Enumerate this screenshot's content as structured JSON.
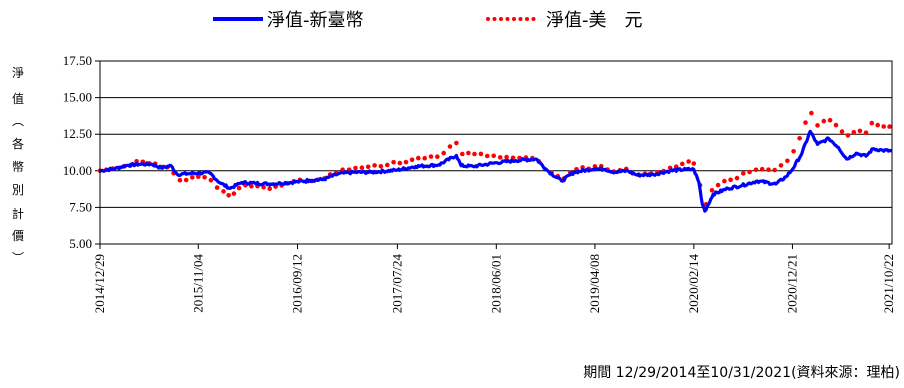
{
  "footnote": "期間 12/29/2014至10/31/2021(資料來源：理柏)",
  "chart_data": {
    "type": "line",
    "ylabel": "淨值（各幣別計價）",
    "ylim": [
      5.0,
      17.5
    ],
    "yticks": [
      "5.00",
      "7.50",
      "10.00",
      "12.50",
      "15.00",
      "17.50"
    ],
    "xlim": [
      "2014-12-29",
      "2021-10-31"
    ],
    "xticks": [
      "2014/12/29",
      "2015/11/04",
      "2016/09/12",
      "2017/07/24",
      "2018/06/01",
      "2019/04/08",
      "2020/02/14",
      "2020/12/21",
      "2021/10/22"
    ],
    "grid": "horizontal",
    "legend_position": "top",
    "series": [
      {
        "name": "淨值-新臺幣",
        "style": "solid",
        "color": "#0000ff",
        "points": [
          [
            "2014-12-29",
            10.0
          ],
          [
            "2015-02-15",
            10.15
          ],
          [
            "2015-03-20",
            10.35
          ],
          [
            "2015-05-01",
            10.45
          ],
          [
            "2015-06-10",
            10.45
          ],
          [
            "2015-07-10",
            10.2
          ],
          [
            "2015-08-10",
            10.35
          ],
          [
            "2015-08-30",
            9.75
          ],
          [
            "2015-10-01",
            9.8
          ],
          [
            "2015-11-04",
            9.85
          ],
          [
            "2015-12-10",
            9.85
          ],
          [
            "2016-01-10",
            9.2
          ],
          [
            "2016-02-12",
            8.8
          ],
          [
            "2016-03-20",
            9.2
          ],
          [
            "2016-05-01",
            9.15
          ],
          [
            "2016-06-20",
            9.1
          ],
          [
            "2016-07-20",
            9.15
          ],
          [
            "2016-09-12",
            9.25
          ],
          [
            "2016-10-20",
            9.35
          ],
          [
            "2016-12-01",
            9.4
          ],
          [
            "2017-01-20",
            9.8
          ],
          [
            "2017-03-10",
            9.9
          ],
          [
            "2017-05-01",
            9.9
          ],
          [
            "2017-07-24",
            10.05
          ],
          [
            "2017-09-20",
            10.3
          ],
          [
            "2017-12-01",
            10.4
          ],
          [
            "2018-01-26",
            11.05
          ],
          [
            "2018-02-10",
            10.35
          ],
          [
            "2018-03-20",
            10.3
          ],
          [
            "2018-06-01",
            10.55
          ],
          [
            "2018-08-01",
            10.7
          ],
          [
            "2018-10-05",
            10.8
          ],
          [
            "2018-11-10",
            10.0
          ],
          [
            "2018-12-24",
            9.3
          ],
          [
            "2019-02-01",
            9.9
          ],
          [
            "2019-04-08",
            10.15
          ],
          [
            "2019-05-10",
            10.1
          ],
          [
            "2019-06-10",
            9.9
          ],
          [
            "2019-07-20",
            10.0
          ],
          [
            "2019-08-20",
            9.7
          ],
          [
            "2019-10-10",
            9.75
          ],
          [
            "2019-12-01",
            10.0
          ],
          [
            "2020-01-20",
            10.1
          ],
          [
            "2020-02-14",
            10.1
          ],
          [
            "2020-03-01",
            9.2
          ],
          [
            "2020-03-12",
            7.7
          ],
          [
            "2020-03-20",
            7.25
          ],
          [
            "2020-04-15",
            8.4
          ],
          [
            "2020-06-01",
            8.8
          ],
          [
            "2020-07-15",
            9.0
          ],
          [
            "2020-09-01",
            9.3
          ],
          [
            "2020-10-30",
            9.1
          ],
          [
            "2020-12-01",
            9.6
          ],
          [
            "2020-12-21",
            10.1
          ],
          [
            "2021-01-20",
            11.2
          ],
          [
            "2021-02-15",
            12.7
          ],
          [
            "2021-03-10",
            11.8
          ],
          [
            "2021-04-15",
            12.2
          ],
          [
            "2021-05-15",
            11.6
          ],
          [
            "2021-06-10",
            10.8
          ],
          [
            "2021-07-10",
            11.2
          ],
          [
            "2021-08-10",
            11.0
          ],
          [
            "2021-09-01",
            11.5
          ],
          [
            "2021-10-01",
            11.4
          ],
          [
            "2021-10-31",
            11.35
          ]
        ]
      },
      {
        "name": "淨值-美　元",
        "style": "dotted",
        "color": "#ff0000",
        "points": [
          [
            "2014-12-29",
            10.0
          ],
          [
            "2015-02-15",
            10.2
          ],
          [
            "2015-03-20",
            10.4
          ],
          [
            "2015-05-01",
            10.6
          ],
          [
            "2015-06-10",
            10.55
          ],
          [
            "2015-07-10",
            10.25
          ],
          [
            "2015-08-10",
            10.2
          ],
          [
            "2015-08-30",
            9.45
          ],
          [
            "2015-10-01",
            9.4
          ],
          [
            "2015-11-04",
            9.6
          ],
          [
            "2015-12-10",
            9.4
          ],
          [
            "2016-01-10",
            8.7
          ],
          [
            "2016-02-12",
            8.3
          ],
          [
            "2016-03-20",
            8.95
          ],
          [
            "2016-05-01",
            8.9
          ],
          [
            "2016-06-20",
            8.85
          ],
          [
            "2016-07-20",
            9.05
          ],
          [
            "2016-09-12",
            9.3
          ],
          [
            "2016-10-20",
            9.35
          ],
          [
            "2016-12-01",
            9.45
          ],
          [
            "2017-01-20",
            9.95
          ],
          [
            "2017-03-10",
            10.15
          ],
          [
            "2017-05-01",
            10.3
          ],
          [
            "2017-07-24",
            10.55
          ],
          [
            "2017-09-20",
            10.8
          ],
          [
            "2017-12-01",
            11.0
          ],
          [
            "2018-01-26",
            11.9
          ],
          [
            "2018-02-10",
            11.05
          ],
          [
            "2018-03-20",
            11.2
          ],
          [
            "2018-06-01",
            11.0
          ],
          [
            "2018-08-01",
            10.9
          ],
          [
            "2018-10-05",
            10.9
          ],
          [
            "2018-11-10",
            10.0
          ],
          [
            "2018-12-24",
            9.45
          ],
          [
            "2019-02-01",
            10.05
          ],
          [
            "2019-04-08",
            10.3
          ],
          [
            "2019-05-10",
            10.2
          ],
          [
            "2019-06-10",
            10.0
          ],
          [
            "2019-07-20",
            10.1
          ],
          [
            "2019-08-20",
            9.65
          ],
          [
            "2019-10-10",
            9.85
          ],
          [
            "2019-12-01",
            10.2
          ],
          [
            "2020-01-20",
            10.6
          ],
          [
            "2020-02-14",
            10.5
          ],
          [
            "2020-03-01",
            9.5
          ],
          [
            "2020-03-12",
            8.0
          ],
          [
            "2020-03-20",
            7.6
          ],
          [
            "2020-04-15",
            8.9
          ],
          [
            "2020-06-01",
            9.4
          ],
          [
            "2020-07-15",
            9.7
          ],
          [
            "2020-09-01",
            10.1
          ],
          [
            "2020-10-30",
            10.0
          ],
          [
            "2020-12-01",
            10.6
          ],
          [
            "2020-12-21",
            11.2
          ],
          [
            "2021-01-20",
            12.6
          ],
          [
            "2021-02-15",
            14.1
          ],
          [
            "2021-03-10",
            13.1
          ],
          [
            "2021-04-15",
            13.6
          ],
          [
            "2021-05-15",
            13.0
          ],
          [
            "2021-06-10",
            12.4
          ],
          [
            "2021-07-10",
            12.8
          ],
          [
            "2021-08-10",
            12.6
          ],
          [
            "2021-09-01",
            13.3
          ],
          [
            "2021-10-01",
            13.1
          ],
          [
            "2021-10-31",
            12.95
          ]
        ]
      }
    ]
  }
}
